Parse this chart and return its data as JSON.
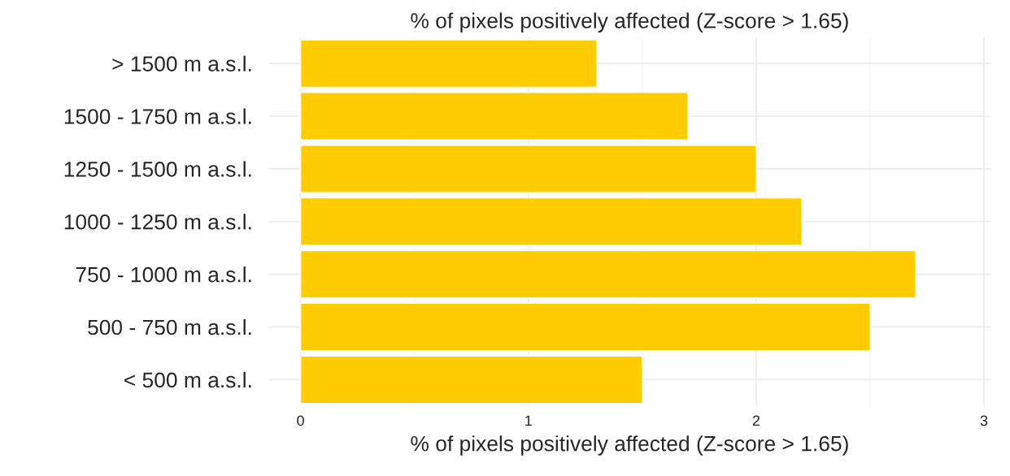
{
  "chart_data": {
    "type": "bar",
    "orientation": "horizontal",
    "title": "% of pixels positively affected (Z-score > 1.65)",
    "xlabel": "% of pixels positively affected (Z-score > 1.65)",
    "categories": [
      "> 1500 m a.s.l.",
      "1500 - 1750 m a.s.l.",
      "1250 - 1500 m a.s.l.",
      "1000 - 1250 m a.s.l.",
      "750 - 1000 m a.s.l.",
      "500 - 750 m a.s.l.",
      "< 500 m a.s.l."
    ],
    "values": [
      1.3,
      1.7,
      2.0,
      2.2,
      2.7,
      2.5,
      1.5
    ],
    "color": "#ffcc00",
    "xlim": [
      -0.14,
      3.03
    ],
    "xticks": [
      0,
      1,
      2,
      3
    ],
    "grid": true,
    "legend": false
  }
}
